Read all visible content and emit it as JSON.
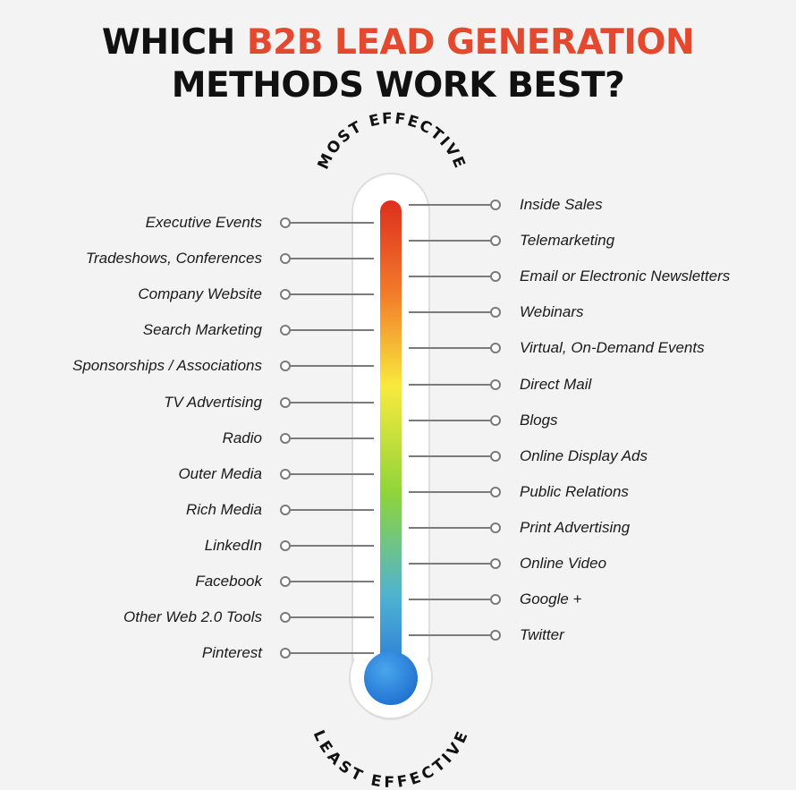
{
  "title": {
    "line1_prefix": "WHICH",
    "line1_accent": "B2B LEAD GENERATION",
    "line2": "METHODS WORK BEST?"
  },
  "scale": {
    "top_label": "MOST EFFECTIVE",
    "bottom_label": "LEAST EFFECTIVE"
  },
  "left_items": [
    "Executive Events",
    "Tradeshows, Conferences",
    "Company Website",
    "Search Marketing",
    "Sponsorships / Associations",
    "TV Advertising",
    "Radio",
    "Outer Media",
    "Rich Media",
    "LinkedIn",
    "Facebook",
    "Other Web 2.0 Tools",
    "Pinterest"
  ],
  "right_items": [
    "Inside Sales",
    "Telemarketing",
    "Email or Electronic Newsletters",
    "Webinars",
    "Virtual, On-Demand Events",
    "Direct Mail",
    "Blogs",
    "Online Display Ads",
    "Public Relations",
    "Print Advertising",
    "Online Video",
    "Google +",
    "Twitter"
  ],
  "colors": {
    "accent": "#e2492f",
    "gradient": [
      "#dd2f1f",
      "#f27b2a",
      "#f8ea3e",
      "#8fd43a",
      "#4fb3d1",
      "#2f7fd6"
    ]
  }
}
